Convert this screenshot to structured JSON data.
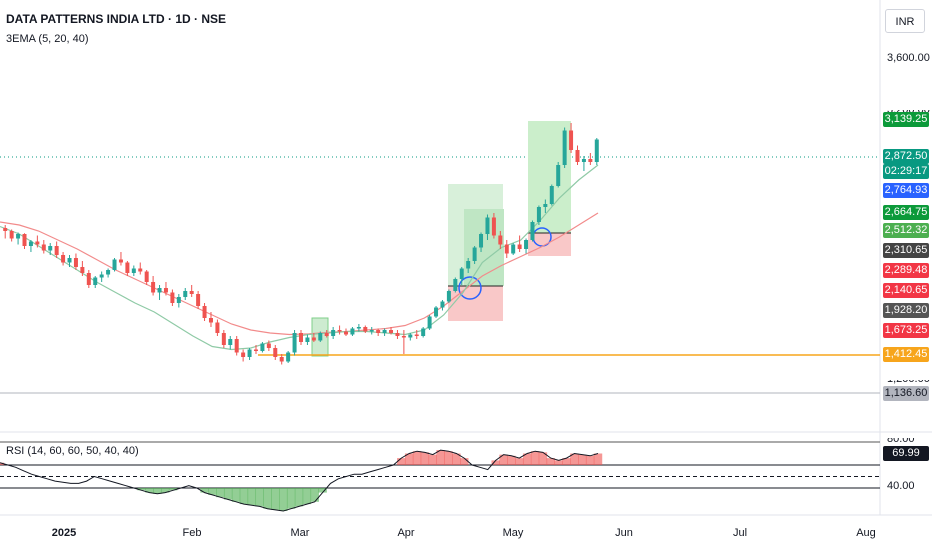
{
  "header": {
    "title": "DATA PATTERNS INDIA LTD · 1D · NSE",
    "indicator": "3EMA (5, 20, 40)",
    "rsi_label": "RSI (14, 60, 60, 50, 40, 40)",
    "currency": "INR"
  },
  "colors": {
    "up": "#26a69a",
    "down": "#ef5350",
    "ema_fast": "#8fcaa6",
    "ema_slow": "#f28b8b",
    "support": "#f7a51c",
    "rsi_fill_up": "#ef5350",
    "rsi_fill_down": "#4caf50"
  },
  "price_axis": {
    "ticks": [
      "3,600.00",
      "3,200.00",
      "1,200.00"
    ],
    "badges": [
      {
        "label": "3,139.25",
        "color": "#0c9a3a"
      },
      {
        "label": "2,872.50",
        "color": "#089981"
      },
      {
        "label": "02:29:17",
        "color": "#089981"
      },
      {
        "label": "2,764.93",
        "color": "#2962ff"
      },
      {
        "label": "2,664.75",
        "color": "#0c9a3a"
      },
      {
        "label": "2,512.32",
        "color": "#4caf50"
      },
      {
        "label": "2,310.65",
        "color": "#444444"
      },
      {
        "label": "2,289.48",
        "color": "#f23645"
      },
      {
        "label": "2,140.65",
        "color": "#f23645"
      },
      {
        "label": "1,928.20",
        "color": "#555555"
      },
      {
        "label": "1,673.25",
        "color": "#f23645"
      },
      {
        "label": "1,412.45",
        "color": "#f7a51c"
      },
      {
        "label": "1,136.60",
        "color": "#b2b5be"
      }
    ]
  },
  "rsi_axis": {
    "ticks": [
      "80.00",
      "40.00"
    ],
    "value_badge": "69.99"
  },
  "time_axis": [
    "2025",
    "Feb",
    "Mar",
    "Apr",
    "May",
    "Jun",
    "Jul",
    "Aug"
  ],
  "chart_data": {
    "type": "candlestick",
    "ohlc": [
      [
        2280,
        2300,
        2210,
        2260
      ],
      [
        2260,
        2270,
        2190,
        2210
      ],
      [
        2210,
        2250,
        2170,
        2240
      ],
      [
        2240,
        2245,
        2140,
        2160
      ],
      [
        2160,
        2200,
        2120,
        2190
      ],
      [
        2190,
        2230,
        2150,
        2170
      ],
      [
        2170,
        2200,
        2110,
        2130
      ],
      [
        2130,
        2180,
        2100,
        2160
      ],
      [
        2160,
        2190,
        2080,
        2100
      ],
      [
        2100,
        2120,
        2030,
        2050
      ],
      [
        2050,
        2100,
        2020,
        2080
      ],
      [
        2080,
        2110,
        2000,
        2020
      ],
      [
        2020,
        2060,
        1960,
        1980
      ],
      [
        1980,
        2000,
        1880,
        1900
      ],
      [
        1900,
        1960,
        1880,
        1950
      ],
      [
        1950,
        1990,
        1920,
        1970
      ],
      [
        1970,
        2010,
        1950,
        2000
      ],
      [
        2000,
        2080,
        1990,
        2070
      ],
      [
        2070,
        2120,
        2030,
        2050
      ],
      [
        2050,
        2060,
        1960,
        1980
      ],
      [
        1980,
        2030,
        1960,
        2010
      ],
      [
        2010,
        2050,
        1970,
        1990
      ],
      [
        1990,
        2000,
        1900,
        1920
      ],
      [
        1920,
        1960,
        1830,
        1850
      ],
      [
        1850,
        1900,
        1800,
        1880
      ],
      [
        1880,
        1920,
        1830,
        1850
      ],
      [
        1850,
        1870,
        1760,
        1780
      ],
      [
        1780,
        1840,
        1750,
        1820
      ],
      [
        1820,
        1880,
        1800,
        1860
      ],
      [
        1860,
        1900,
        1820,
        1840
      ],
      [
        1840,
        1860,
        1740,
        1760
      ],
      [
        1760,
        1780,
        1660,
        1680
      ],
      [
        1680,
        1720,
        1620,
        1650
      ],
      [
        1650,
        1670,
        1560,
        1580
      ],
      [
        1580,
        1600,
        1480,
        1500
      ],
      [
        1500,
        1560,
        1470,
        1540
      ],
      [
        1540,
        1560,
        1430,
        1450
      ],
      [
        1450,
        1470,
        1390,
        1420
      ],
      [
        1420,
        1480,
        1400,
        1470
      ],
      [
        1470,
        1500,
        1440,
        1460
      ],
      [
        1460,
        1520,
        1450,
        1510
      ],
      [
        1510,
        1530,
        1460,
        1480
      ],
      [
        1480,
        1500,
        1400,
        1420
      ],
      [
        1420,
        1440,
        1370,
        1390
      ],
      [
        1390,
        1460,
        1380,
        1450
      ],
      [
        1450,
        1600,
        1430,
        1580
      ],
      [
        1580,
        1600,
        1500,
        1520
      ],
      [
        1520,
        1570,
        1500,
        1550
      ],
      [
        1550,
        1580,
        1520,
        1530
      ],
      [
        1530,
        1590,
        1520,
        1580
      ],
      [
        1580,
        1600,
        1550,
        1560
      ],
      [
        1560,
        1620,
        1540,
        1600
      ],
      [
        1600,
        1630,
        1570,
        1590
      ],
      [
        1590,
        1610,
        1560,
        1570
      ],
      [
        1570,
        1620,
        1560,
        1610
      ],
      [
        1610,
        1640,
        1590,
        1620
      ],
      [
        1620,
        1630,
        1580,
        1590
      ],
      [
        1590,
        1620,
        1570,
        1600
      ],
      [
        1600,
        1610,
        1560,
        1580
      ],
      [
        1580,
        1610,
        1560,
        1600
      ],
      [
        1600,
        1620,
        1570,
        1580
      ],
      [
        1580,
        1600,
        1540,
        1560
      ],
      [
        1560,
        1600,
        1440,
        1550
      ],
      [
        1550,
        1580,
        1530,
        1570
      ],
      [
        1570,
        1600,
        1540,
        1560
      ],
      [
        1560,
        1620,
        1550,
        1610
      ],
      [
        1610,
        1700,
        1600,
        1690
      ],
      [
        1690,
        1760,
        1680,
        1750
      ],
      [
        1750,
        1800,
        1730,
        1790
      ],
      [
        1790,
        1870,
        1780,
        1860
      ],
      [
        1860,
        1950,
        1850,
        1940
      ],
      [
        1940,
        2020,
        1900,
        2010
      ],
      [
        2010,
        2080,
        1980,
        2060
      ],
      [
        2060,
        2160,
        2040,
        2150
      ],
      [
        2150,
        2250,
        2120,
        2240
      ],
      [
        2240,
        2370,
        2200,
        2350
      ],
      [
        2350,
        2380,
        2210,
        2230
      ],
      [
        2230,
        2260,
        2140,
        2170
      ],
      [
        2170,
        2200,
        2080,
        2110
      ],
      [
        2110,
        2180,
        2100,
        2170
      ],
      [
        2170,
        2230,
        2120,
        2140
      ],
      [
        2140,
        2210,
        2110,
        2200
      ],
      [
        2200,
        2330,
        2190,
        2320
      ],
      [
        2320,
        2430,
        2300,
        2420
      ],
      [
        2420,
        2470,
        2380,
        2440
      ],
      [
        2440,
        2570,
        2430,
        2560
      ],
      [
        2560,
        2720,
        2550,
        2700
      ],
      [
        2700,
        2950,
        2680,
        2930
      ],
      [
        2930,
        2980,
        2780,
        2800
      ],
      [
        2800,
        2830,
        2700,
        2720
      ],
      [
        2720,
        2760,
        2660,
        2740
      ],
      [
        2740,
        2780,
        2700,
        2720
      ],
      [
        2720,
        2880,
        2700,
        2870
      ]
    ],
    "ema_fast": [
      2290,
      2240,
      2160,
      2080,
      2000,
      1920,
      1850,
      1780,
      1720,
      1640,
      1560,
      1490,
      1470,
      1480,
      1520,
      1550,
      1570,
      1580,
      1590,
      1590,
      1580,
      1570,
      1600,
      1700,
      1850,
      2050,
      2150,
      2200,
      2330,
      2480,
      2600,
      2700
    ],
    "ema_slow": [
      2320,
      2300,
      2260,
      2200,
      2140,
      2070,
      2000,
      1940,
      1880,
      1820,
      1760,
      1700,
      1640,
      1600,
      1580,
      1570,
      1575,
      1585,
      1590,
      1600,
      1610,
      1630,
      1680,
      1760,
      1860,
      1960,
      2030,
      2090,
      2150,
      2220,
      2300,
      2380
    ],
    "support_level": 1412.45,
    "rsi": [
      62,
      60,
      58,
      55,
      52,
      50,
      48,
      46,
      45,
      44,
      44,
      46,
      50,
      48,
      46,
      44,
      42,
      40,
      38,
      36,
      35,
      36,
      38,
      40,
      42,
      40,
      36,
      34,
      32,
      30,
      28,
      26,
      25,
      24,
      22,
      21,
      20,
      22,
      24,
      26,
      28,
      36,
      44,
      48,
      50,
      52,
      52,
      54,
      56,
      58,
      60,
      66,
      70,
      72,
      71,
      69,
      73,
      72,
      70,
      66,
      60,
      58,
      56,
      64,
      69,
      68,
      66,
      70,
      72,
      71,
      66,
      64,
      66,
      70,
      69,
      68,
      70
    ],
    "rsi_levels": [
      80,
      60,
      50,
      40
    ],
    "ylim": [
      1100,
      3700
    ]
  }
}
